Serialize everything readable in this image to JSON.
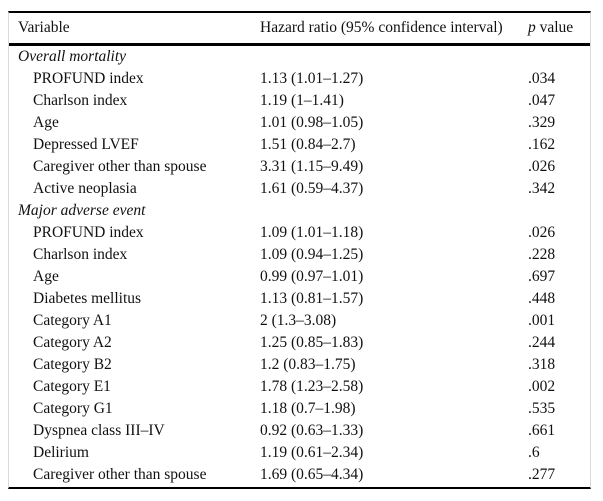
{
  "table": {
    "header": {
      "variable": "Variable",
      "hazard_ratio": "Hazard ratio (95% confidence interval)",
      "p_value_italic": "p",
      "p_value_rest": " value"
    },
    "sections": [
      {
        "label": "Overall mortality",
        "rows": [
          {
            "variable": "PROFUND index",
            "hazard_ratio": "1.13 (1.01–1.27)",
            "p_value": ".034"
          },
          {
            "variable": "Charlson index",
            "hazard_ratio": "1.19 (1–1.41)",
            "p_value": ".047"
          },
          {
            "variable": "Age",
            "hazard_ratio": "1.01 (0.98–1.05)",
            "p_value": ".329"
          },
          {
            "variable": "Depressed LVEF",
            "hazard_ratio": "1.51 (0.84–2.7)",
            "p_value": ".162"
          },
          {
            "variable": "Caregiver other than spouse",
            "hazard_ratio": "3.31 (1.15–9.49)",
            "p_value": ".026"
          },
          {
            "variable": "Active neoplasia",
            "hazard_ratio": "1.61 (0.59–4.37)",
            "p_value": ".342"
          }
        ]
      },
      {
        "label": "Major adverse event",
        "rows": [
          {
            "variable": "PROFUND index",
            "hazard_ratio": "1.09 (1.01–1.18)",
            "p_value": ".026"
          },
          {
            "variable": "Charlson index",
            "hazard_ratio": "1.09 (0.94–1.25)",
            "p_value": ".228"
          },
          {
            "variable": "Age",
            "hazard_ratio": "0.99 (0.97–1.01)",
            "p_value": ".697"
          },
          {
            "variable": "Diabetes mellitus",
            "hazard_ratio": "1.13 (0.81–1.57)",
            "p_value": ".448"
          },
          {
            "variable": "Category A1",
            "hazard_ratio": "2 (1.3–3.08)",
            "p_value": ".001"
          },
          {
            "variable": "Category A2",
            "hazard_ratio": "1.25 (0.85–1.83)",
            "p_value": ".244"
          },
          {
            "variable": "Category B2",
            "hazard_ratio": "1.2 (0.83–1.75)",
            "p_value": ".318"
          },
          {
            "variable": "Category E1",
            "hazard_ratio": "1.78 (1.23–2.58)",
            "p_value": ".002"
          },
          {
            "variable": "Category G1",
            "hazard_ratio": "1.18 (0.7–1.98)",
            "p_value": ".535"
          },
          {
            "variable": "Dyspnea class III–IV",
            "hazard_ratio": "0.92 (0.63–1.33)",
            "p_value": ".661"
          },
          {
            "variable": "Delirium",
            "hazard_ratio": "1.19 (0.61–2.34)",
            "p_value": ".6"
          },
          {
            "variable": "Caregiver other than spouse",
            "hazard_ratio": "1.69 (0.65–4.34)",
            "p_value": ".277"
          }
        ]
      }
    ]
  },
  "colors": {
    "rule": "#000000",
    "frame_edge": "#d9d9d9",
    "text": "#111111",
    "background": "#ffffff"
  }
}
